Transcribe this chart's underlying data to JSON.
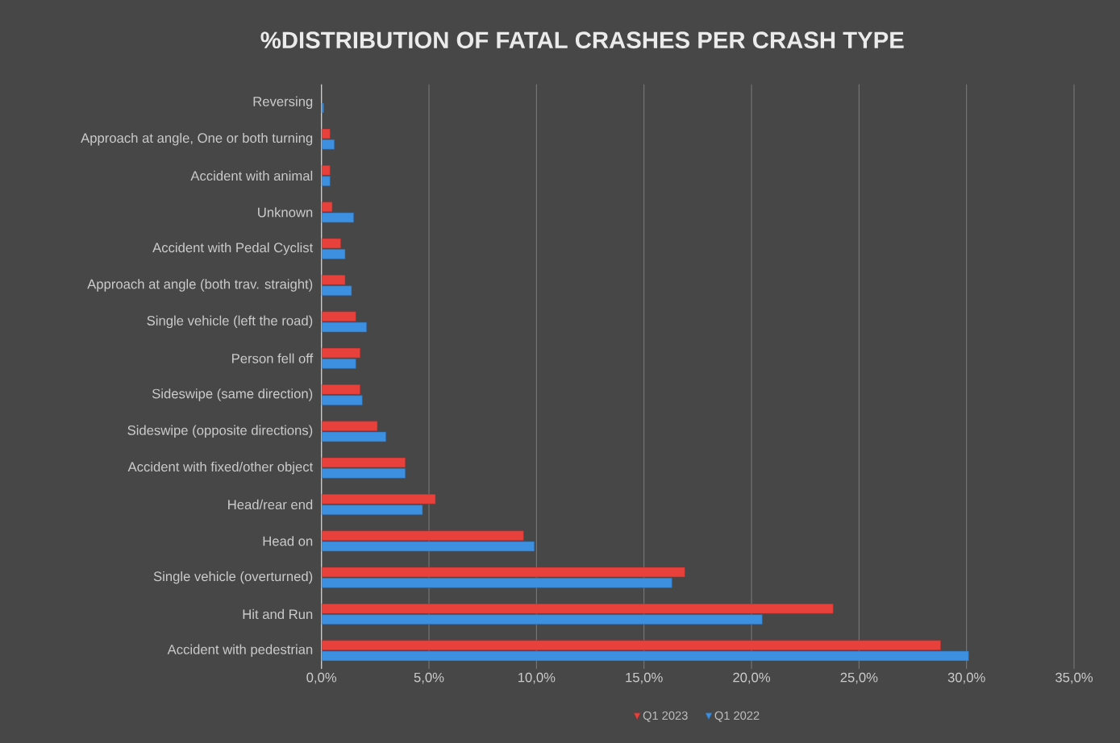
{
  "chart_data": {
    "type": "bar",
    "orientation": "horizontal",
    "title": "%DISTRIBUTION OF FATAL CRASHES PER CRASH TYPE",
    "categories": [
      "Reversing",
      "Approach at angle,  One or both turning",
      "Accident with animal",
      "Unknown",
      "Accident with Pedal Cyclist",
      "Approach at angle (both trav. straight)",
      "Single vehicle (left the road)",
      "Person fell off",
      "Sideswipe (same direction)",
      "Sideswipe (opposite directions)",
      "Accident with fixed/other object",
      "Head/rear end",
      "Head on",
      "Single vehicle (overturned)",
      "Hit and Run",
      "Accident with pedestrian"
    ],
    "series": [
      {
        "name": "Q1 2023",
        "color": "#e8413c",
        "values": [
          null,
          0.4,
          0.4,
          0.5,
          0.9,
          1.1,
          1.6,
          1.8,
          1.8,
          2.6,
          3.9,
          5.3,
          9.4,
          16.9,
          23.8,
          28.8
        ]
      },
      {
        "name": "Q1 2022",
        "color": "#3d8fe0",
        "values": [
          0.1,
          0.6,
          0.4,
          1.5,
          1.1,
          1.4,
          2.1,
          1.6,
          1.9,
          3.0,
          3.9,
          4.7,
          9.9,
          16.3,
          20.5,
          30.1
        ]
      }
    ],
    "xlim": [
      0,
      35
    ],
    "xticks": [
      {
        "value": 0,
        "label": "0,0%"
      },
      {
        "value": 5,
        "label": "5,0%"
      },
      {
        "value": 10,
        "label": "10,0%"
      },
      {
        "value": 15,
        "label": "15,0%"
      },
      {
        "value": 20,
        "label": "20,0%"
      },
      {
        "value": 25,
        "label": "25,0%"
      },
      {
        "value": 30,
        "label": "30,0%"
      },
      {
        "value": 35,
        "label": "35,0%"
      }
    ],
    "grid": "x",
    "legend": "bottom"
  }
}
